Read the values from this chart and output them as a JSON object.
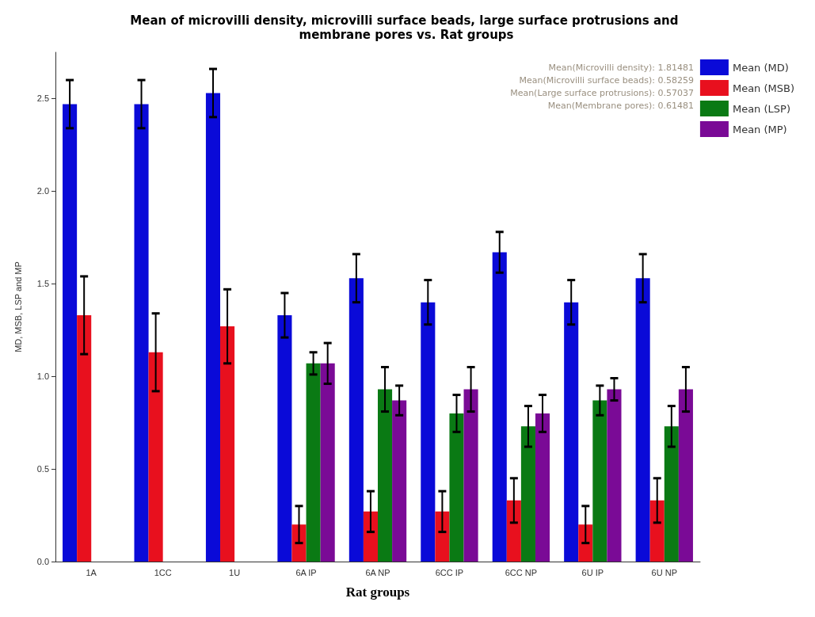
{
  "chart_data": {
    "type": "bar",
    "title": "Mean of microvilli density, microvilli surface beads, large surface protrusions and membrane pores vs. Rat groups",
    "xlabel": "Rat groups",
    "ylabel": "MD, MSB, LSP and MP",
    "categories": [
      "1A",
      "1CC",
      "1U",
      "6A IP",
      "6A NP",
      "6CC IP",
      "6CC NP",
      "6U IP",
      "6U NP"
    ],
    "series": [
      {
        "name": "Mean (MD)",
        "color": "#0a0ad8",
        "values": [
          2.47,
          2.47,
          2.53,
          1.33,
          1.53,
          1.4,
          1.67,
          1.4,
          1.53
        ],
        "errors": [
          0.13,
          0.13,
          0.13,
          0.12,
          0.13,
          0.12,
          0.11,
          0.12,
          0.13
        ]
      },
      {
        "name": "Mean (MSB)",
        "color": "#e8101e",
        "values": [
          1.33,
          1.13,
          1.27,
          0.2,
          0.27,
          0.27,
          0.33,
          0.2,
          0.33
        ],
        "errors": [
          0.21,
          0.21,
          0.2,
          0.1,
          0.11,
          0.11,
          0.12,
          0.1,
          0.12
        ]
      },
      {
        "name": "Mean (LSP)",
        "color": "#0a7a14",
        "values": [
          null,
          null,
          null,
          1.07,
          0.93,
          0.8,
          0.73,
          0.87,
          0.73
        ],
        "errors": [
          null,
          null,
          null,
          0.06,
          0.12,
          0.1,
          0.11,
          0.08,
          0.11
        ]
      },
      {
        "name": "Mean (MP)",
        "color": "#7a0a96",
        "values": [
          null,
          null,
          null,
          1.07,
          0.87,
          0.93,
          0.8,
          0.93,
          0.93
        ],
        "errors": [
          null,
          null,
          null,
          0.11,
          0.08,
          0.12,
          0.1,
          0.06,
          0.12
        ]
      }
    ],
    "ylim": [
      0,
      2.75
    ],
    "yticks": [
      {
        "value": 0,
        "label": "0.0"
      },
      {
        "value": 0.5,
        "label": "0.5"
      },
      {
        "value": 1,
        "label": "1.0"
      },
      {
        "value": 1.5,
        "label": "1.5"
      },
      {
        "value": 2,
        "label": "2.0"
      },
      {
        "value": 2.5,
        "label": "2.5"
      }
    ],
    "grid": false,
    "legend": "top right",
    "annotations": [
      "Mean(Microvilli density): 1.81481",
      "Mean(Microvilli surface beads): 0.58259",
      "Mean(Large surface protrusions): 0.57037",
      "Mean(Membrane pores): 0.61481"
    ]
  }
}
